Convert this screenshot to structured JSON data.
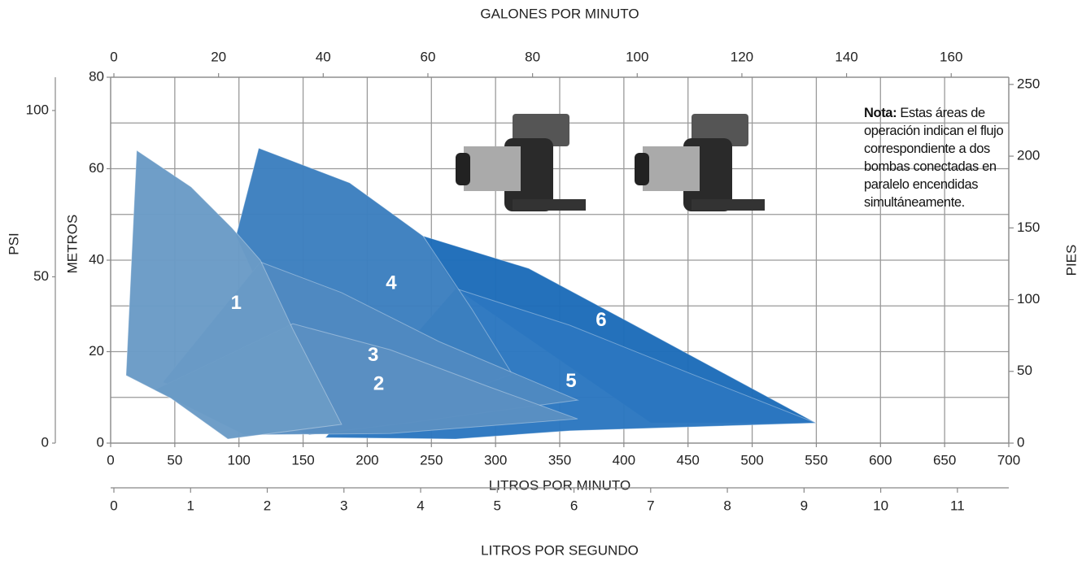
{
  "chart_data": {
    "type": "area",
    "x_label": "LITROS POR MINUTO",
    "y_label": "METROS",
    "x2_label": "GALONES POR MINUTO",
    "y2_label": "PIES",
    "x3_label": "LITROS POR SEGUNDO",
    "y3_label": "PSI",
    "xlim": [
      0,
      700
    ],
    "xticks": [
      0,
      50,
      100,
      150,
      200,
      250,
      300,
      350,
      400,
      450,
      500,
      550,
      600,
      650,
      700
    ],
    "ylim": [
      0,
      80
    ],
    "yticks": [
      0,
      20,
      40,
      60,
      80
    ],
    "minor_yticks": [
      10,
      30,
      50,
      70
    ],
    "x2lim": [
      0,
      171
    ],
    "x2ticks": [
      0,
      20,
      40,
      60,
      80,
      100,
      120,
      140,
      160
    ],
    "y2lim": [
      0,
      255
    ],
    "y2ticks": [
      0,
      50,
      100,
      150,
      200,
      250
    ],
    "x3lim": [
      0,
      11.67
    ],
    "x3ticks": [
      0,
      1,
      2,
      3,
      4,
      5,
      6,
      7,
      8,
      9,
      10,
      11
    ],
    "y3lim": [
      0,
      110
    ],
    "y3ticks": [
      0,
      50,
      100
    ],
    "grid": true,
    "series": [
      {
        "name": "1",
        "color": "#6a9bc6",
        "x": [
          20.3,
          62.8,
          94.5,
          116.7,
          142,
          180,
          91.3,
          46.9,
          12
        ],
        "values": [
          64,
          56,
          47.1,
          40,
          24.9,
          4.1,
          0.9,
          9.8,
          14.8
        ]
      },
      {
        "name": "2",
        "color": "#5b90c2",
        "x": [
          34.2,
          142,
          218,
          294,
          364,
          218,
          104
        ],
        "values": [
          11.6,
          26.1,
          20.4,
          12.4,
          5.3,
          2.1,
          1.8
        ]
      },
      {
        "name": "3",
        "color": "#4f89c1",
        "x": [
          40.6,
          116.7,
          180,
          256,
          364,
          231,
          155
        ],
        "values": [
          13.3,
          39.6,
          32.9,
          22.2,
          9.4,
          4.4,
          1.8
        ]
      },
      {
        "name": "4",
        "color": "#3c7fbf",
        "x": [
          115.4,
          186.4,
          243.5,
          281.5,
          313,
          243.5,
          167.4,
          97.7
        ],
        "values": [
          64.5,
          56.9,
          45.3,
          29.3,
          15.1,
          8,
          2.7,
          45.3
        ]
      },
      {
        "name": "5",
        "color": "#2b77c0",
        "x": [
          268.9,
          357.6,
          452.8,
          549.8,
          357.6,
          268.9,
          167.4
        ],
        "values": [
          33.8,
          25.8,
          15.1,
          4.4,
          2.7,
          0.9,
          1.2
        ]
      },
      {
        "name": "6",
        "color": "#1d6cb9",
        "x": [
          243.5,
          325.9,
          408.4,
          549.8,
          421,
          268.9
        ],
        "values": [
          45.3,
          38.2,
          25.8,
          4.4,
          4.4,
          33.8
        ]
      }
    ],
    "note": {
      "bold": "Nota:",
      "text": "Estas áreas de operación indican el flujo correspondiente a dos bombas conectadas en paralelo encendidas simultáneamente."
    }
  }
}
